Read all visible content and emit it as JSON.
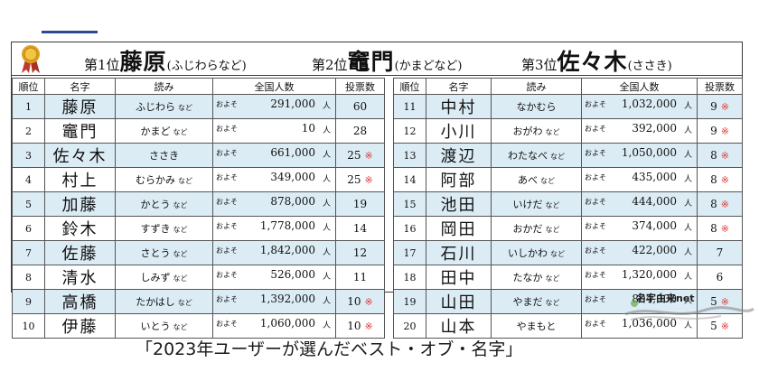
{
  "header": {
    "first_label": "第1位",
    "first_name": "藤原",
    "first_reading": "(ふじわらなど)",
    "second_label": "第2位",
    "second_name": "竈門",
    "second_reading": "(かまどなど)",
    "third_label": "第3位",
    "third_name": "佐々木",
    "third_reading": "(ささき)"
  },
  "columns": {
    "rank": "順位",
    "name": "名字",
    "reading": "読み",
    "population": "全国人数",
    "votes": "投票数"
  },
  "labels": {
    "approx": "およそ",
    "unit": "人",
    "etc": "など",
    "star": "※"
  },
  "left_rows": [
    {
      "rank": "1",
      "name": "藤原",
      "reading": "ふじわら",
      "etc": true,
      "population": "291,000",
      "votes": "60",
      "star": false,
      "shade": true
    },
    {
      "rank": "2",
      "name": "竈門",
      "reading": "かまど",
      "etc": true,
      "population": "10",
      "votes": "28",
      "star": false,
      "shade": false
    },
    {
      "rank": "3",
      "name": "佐々木",
      "reading": "ささき",
      "etc": false,
      "population": "661,000",
      "votes": "25",
      "star": true,
      "shade": true
    },
    {
      "rank": "4",
      "name": "村上",
      "reading": "むらかみ",
      "etc": true,
      "population": "349,000",
      "votes": "25",
      "star": true,
      "shade": false
    },
    {
      "rank": "5",
      "name": "加藤",
      "reading": "かとう",
      "etc": true,
      "population": "878,000",
      "votes": "19",
      "star": false,
      "shade": true
    },
    {
      "rank": "6",
      "name": "鈴木",
      "reading": "すずき",
      "etc": true,
      "population": "1,778,000",
      "votes": "14",
      "star": false,
      "shade": false
    },
    {
      "rank": "7",
      "name": "佐藤",
      "reading": "さとう",
      "etc": true,
      "population": "1,842,000",
      "votes": "12",
      "star": false,
      "shade": true
    },
    {
      "rank": "8",
      "name": "清水",
      "reading": "しみず",
      "etc": true,
      "population": "526,000",
      "votes": "11",
      "star": false,
      "shade": false
    },
    {
      "rank": "9",
      "name": "高橋",
      "reading": "たかはし",
      "etc": true,
      "population": "1,392,000",
      "votes": "10",
      "star": true,
      "shade": true
    },
    {
      "rank": "10",
      "name": "伊藤",
      "reading": "いとう",
      "etc": true,
      "population": "1,060,000",
      "votes": "10",
      "star": true,
      "shade": false
    }
  ],
  "right_rows": [
    {
      "rank": "11",
      "name": "中村",
      "reading": "なかむら",
      "etc": false,
      "population": "1,032,000",
      "votes": "9",
      "star": true,
      "shade": true
    },
    {
      "rank": "12",
      "name": "小川",
      "reading": "おがわ",
      "etc": true,
      "population": "392,000",
      "votes": "9",
      "star": true,
      "shade": false
    },
    {
      "rank": "13",
      "name": "渡辺",
      "reading": "わたなべ",
      "etc": true,
      "population": "1,050,000",
      "votes": "8",
      "star": true,
      "shade": true
    },
    {
      "rank": "14",
      "name": "阿部",
      "reading": "あべ",
      "etc": true,
      "population": "435,000",
      "votes": "8",
      "star": true,
      "shade": false
    },
    {
      "rank": "15",
      "name": "池田",
      "reading": "いけだ",
      "etc": true,
      "population": "444,000",
      "votes": "8",
      "star": true,
      "shade": true
    },
    {
      "rank": "16",
      "name": "岡田",
      "reading": "おかだ",
      "etc": true,
      "population": "374,000",
      "votes": "8",
      "star": true,
      "shade": false
    },
    {
      "rank": "17",
      "name": "石川",
      "reading": "いしかわ",
      "etc": true,
      "population": "422,000",
      "votes": "7",
      "star": false,
      "shade": true
    },
    {
      "rank": "18",
      "name": "田中",
      "reading": "たなか",
      "etc": true,
      "population": "1,320,000",
      "votes": "6",
      "star": false,
      "shade": false
    },
    {
      "rank": "19",
      "name": "山田",
      "reading": "やまだ",
      "etc": true,
      "population": "804,000",
      "votes": "5",
      "star": true,
      "shade": true
    },
    {
      "rank": "20",
      "name": "山本",
      "reading": "やまもと",
      "etc": false,
      "population": "1,036,000",
      "votes": "5",
      "star": true,
      "shade": false
    }
  ],
  "watermark": {
    "text": "名字由来net"
  },
  "caption": "「2023年ユーザーが選んだベスト・オブ・名字」",
  "colors": {
    "row_shade": "#dcecf5",
    "star": "#e03a3a",
    "medal_gold": "#e0a020",
    "medal_ribbon": "#c0392b"
  }
}
